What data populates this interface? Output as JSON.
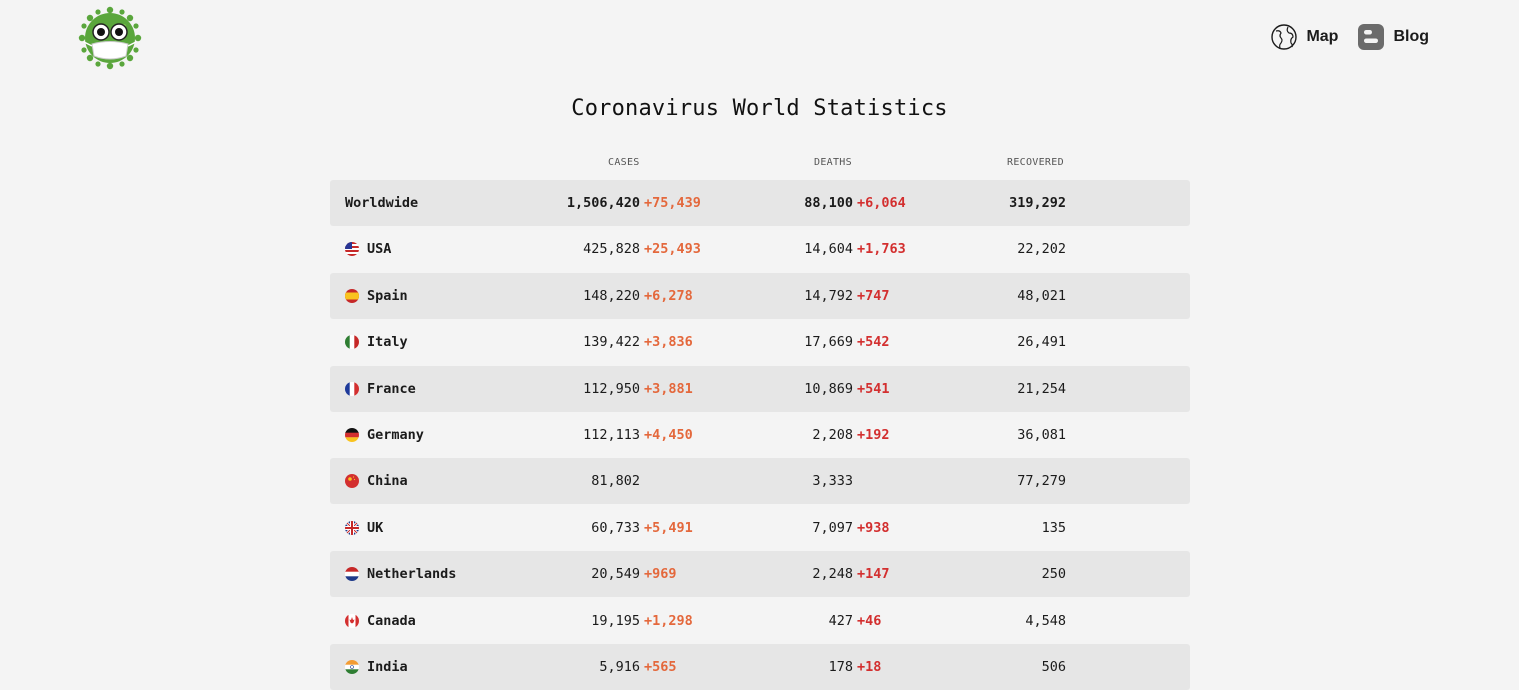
{
  "header": {
    "logo_icon": "virus-mascot-icon",
    "nav": [
      {
        "label": "Map",
        "icon": "globe-icon"
      },
      {
        "label": "Blog",
        "icon": "blogger-icon"
      }
    ]
  },
  "page": {
    "title": "Coronavirus World Statistics"
  },
  "table": {
    "columns": [
      "CASES",
      "DEATHS",
      "RECOVERED"
    ],
    "rows": [
      {
        "country": "Worldwide",
        "flag": "",
        "cases": "1,506,420",
        "cases_delta": "+75,439",
        "deaths": "88,100",
        "deaths_delta": "+6,064",
        "recovered": "319,292"
      },
      {
        "country": "USA",
        "flag": "us-flag-icon",
        "cases": "425,828",
        "cases_delta": "+25,493",
        "deaths": "14,604",
        "deaths_delta": "+1,763",
        "recovered": "22,202"
      },
      {
        "country": "Spain",
        "flag": "spain-flag-icon",
        "cases": "148,220",
        "cases_delta": "+6,278",
        "deaths": "14,792",
        "deaths_delta": "+747",
        "recovered": "48,021"
      },
      {
        "country": "Italy",
        "flag": "italy-flag-icon",
        "cases": "139,422",
        "cases_delta": "+3,836",
        "deaths": "17,669",
        "deaths_delta": "+542",
        "recovered": "26,491"
      },
      {
        "country": "France",
        "flag": "france-flag-icon",
        "cases": "112,950",
        "cases_delta": "+3,881",
        "deaths": "10,869",
        "deaths_delta": "+541",
        "recovered": "21,254"
      },
      {
        "country": "Germany",
        "flag": "germany-flag-icon",
        "cases": "112,113",
        "cases_delta": "+4,450",
        "deaths": "2,208",
        "deaths_delta": "+192",
        "recovered": "36,081"
      },
      {
        "country": "China",
        "flag": "china-flag-icon",
        "cases": "81,802",
        "cases_delta": "",
        "deaths": "3,333",
        "deaths_delta": "",
        "recovered": "77,279"
      },
      {
        "country": "UK",
        "flag": "uk-flag-icon",
        "cases": "60,733",
        "cases_delta": "+5,491",
        "deaths": "7,097",
        "deaths_delta": "+938",
        "recovered": "135"
      },
      {
        "country": "Netherlands",
        "flag": "netherlands-flag-icon",
        "cases": "20,549",
        "cases_delta": "+969",
        "deaths": "2,248",
        "deaths_delta": "+147",
        "recovered": "250"
      },
      {
        "country": "Canada",
        "flag": "canada-flag-icon",
        "cases": "19,195",
        "cases_delta": "+1,298",
        "deaths": "427",
        "deaths_delta": "+46",
        "recovered": "4,548"
      },
      {
        "country": "India",
        "flag": "india-flag-icon",
        "cases": "5,916",
        "cases_delta": "+565",
        "deaths": "178",
        "deaths_delta": "+18",
        "recovered": "506"
      }
    ]
  },
  "colors": {
    "cases_delta": "#e4683c",
    "deaths_delta": "#d32f2f",
    "row_alt": "#e6e6e6",
    "background": "#f4f4f4",
    "virus_green": "#5aa63c"
  }
}
